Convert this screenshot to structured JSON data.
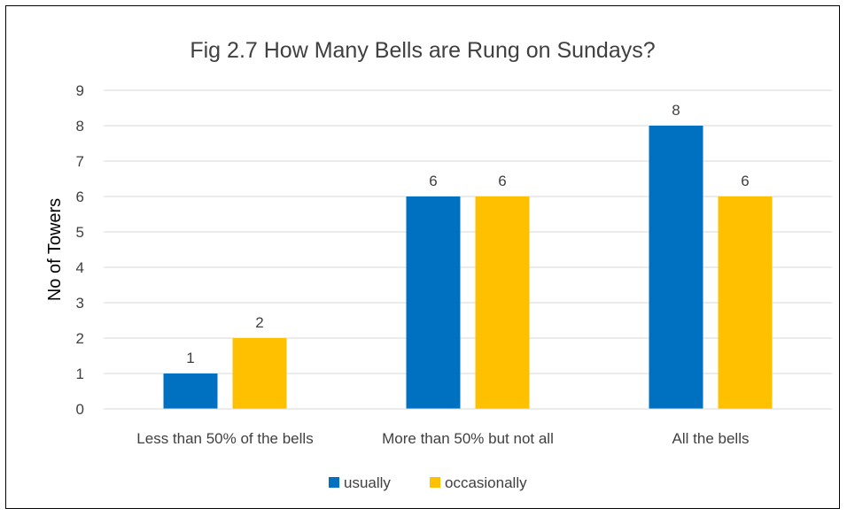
{
  "chart_data": {
    "type": "bar",
    "title": "Fig 2.7 How Many Bells are Rung on Sundays?",
    "xlabel": "",
    "ylabel": "No of Towers",
    "categories": [
      "Less than 50% of the bells",
      "More than 50% but not all",
      "All the bells"
    ],
    "series": [
      {
        "name": "usually",
        "values": [
          1,
          6,
          8
        ],
        "color": "#0070C0"
      },
      {
        "name": "occasionally",
        "values": [
          2,
          6,
          6
        ],
        "color": "#FFC000"
      }
    ],
    "ylim": [
      0,
      9
    ],
    "yticks": [
      "0",
      "1",
      "2",
      "3",
      "4",
      "5",
      "6",
      "7",
      "8",
      "9"
    ],
    "grid": true,
    "legend_position": "bottom",
    "data_labels": true
  }
}
